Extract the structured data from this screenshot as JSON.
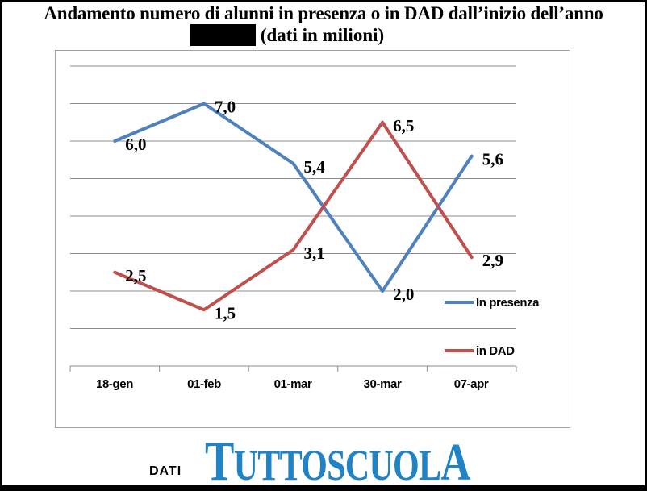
{
  "title": {
    "line1": "Andamento numero di alunni in presenza o in DAD dall’inizio dell’anno",
    "line2_text": "(dati in milioni)",
    "line2_redacted_segment": true
  },
  "chart_data": {
    "type": "line",
    "title": "Andamento numero di alunni in presenza o in DAD dall’inizio dell’anno",
    "subtitle": "(dati in milioni)",
    "categories": [
      "18-gen",
      "01-feb",
      "01-mar",
      "30-mar",
      "07-apr"
    ],
    "series": [
      {
        "name": "In presenza",
        "color": "#4F81BD",
        "values": [
          6.0,
          7.0,
          5.4,
          2.0,
          5.6
        ],
        "point_labels": [
          "6,0",
          "7,0",
          "5,4",
          "2,0",
          "5,6"
        ]
      },
      {
        "name": "in DAD",
        "color": "#C0504D",
        "values": [
          2.5,
          1.5,
          3.1,
          6.5,
          2.9
        ],
        "point_labels": [
          "2,5",
          "1,5",
          "3,1",
          "6,5",
          "2,9"
        ]
      }
    ],
    "xlabel": "",
    "ylabel": "",
    "ylim": [
      0,
      8
    ],
    "gridline_step": 1,
    "grid": true,
    "gridline_color": "#8c8c8c",
    "axis_color": "#8c8c8c",
    "label_color": "#000000",
    "legend_position": "inside-right"
  },
  "footer": {
    "dati_label": "DATI",
    "logo_text": "TUTTOSCUOLA",
    "logo_color": "#1F83C5"
  }
}
